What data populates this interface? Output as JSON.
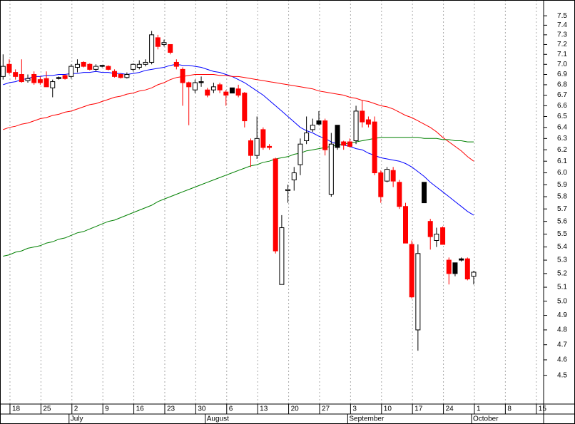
{
  "chart_data": {
    "type": "candlestick",
    "categories": [
      null,
      "18",
      null,
      null,
      null,
      null,
      "25",
      null,
      null,
      null,
      null,
      "2",
      null,
      null,
      null,
      null,
      "9",
      null,
      null,
      null,
      null,
      "16",
      null,
      null,
      null,
      null,
      "23",
      null,
      null,
      null,
      null,
      "30",
      null,
      null,
      null,
      null,
      "6",
      null,
      null,
      null,
      null,
      "13",
      null,
      null,
      null,
      null,
      "20",
      null,
      null,
      null,
      null,
      "27",
      null,
      null,
      null,
      null,
      "3",
      null,
      null,
      null,
      null,
      "10",
      null,
      null,
      null,
      null,
      "17",
      null,
      null,
      null,
      null,
      "24",
      null,
      null,
      null,
      null,
      "1",
      null,
      null,
      null,
      null,
      "8",
      null,
      null,
      null,
      null,
      "15",
      null
    ],
    "months": [
      null,
      null,
      null,
      null,
      null,
      null,
      null,
      null,
      null,
      null,
      null,
      "July",
      null,
      null,
      null,
      null,
      null,
      null,
      null,
      null,
      null,
      null,
      null,
      null,
      null,
      null,
      null,
      null,
      null,
      null,
      null,
      null,
      null,
      "August",
      null,
      null,
      null,
      null,
      null,
      null,
      null,
      null,
      null,
      null,
      null,
      null,
      null,
      null,
      null,
      null,
      null,
      null,
      null,
      null,
      null,
      null,
      "September",
      null,
      null,
      null,
      null,
      null,
      null,
      null,
      null,
      null,
      null,
      null,
      null,
      null,
      null,
      null,
      null,
      null,
      null,
      null,
      "October",
      null,
      null,
      null,
      null,
      null,
      null,
      null,
      null,
      null,
      null,
      null
    ],
    "candles": {
      "open": [
        6.88,
        7.0,
        6.92,
        6.9,
        6.84,
        6.9,
        6.85,
        6.86,
        6.77,
        6.86,
        6.89,
        6.88,
        6.97,
        7.02,
        7.0,
        6.95,
        6.98,
        6.98,
        6.93,
        6.9,
        6.87,
        6.95,
        6.97,
        7.0,
        7.02,
        7.27,
        7.2,
        7.2,
        7.02,
        6.95,
        6.82,
        6.75,
        6.82,
        6.75,
        6.75,
        6.8,
        6.73,
        6.72,
        6.76,
        6.72,
        6.28,
        6.15,
        6.38,
        6.23,
        6.12,
        5.12,
        5.85,
        5.94,
        6.07,
        6.28,
        6.38,
        6.43,
        6.46,
        5.82,
        6.22,
        6.27,
        6.27,
        6.28,
        6.55,
        6.47,
        6.45,
        6.0,
        5.93,
        6.02,
        5.92,
        5.72,
        5.42,
        4.8,
        5.75,
        5.6,
        5.45,
        5.55,
        5.3,
        5.2,
        5.3,
        5.31,
        5.18,
        null,
        null,
        null,
        null,
        null,
        null,
        null,
        null,
        null,
        null,
        null
      ],
      "high": [
        7.1,
        7.05,
        6.95,
        7.05,
        6.9,
        6.93,
        6.88,
        6.93,
        6.85,
        6.88,
        6.9,
        7.0,
        7.05,
        7.03,
        7.01,
        7.0,
        6.99,
        6.99,
        6.95,
        6.91,
        6.92,
        7.01,
        7.04,
        7.05,
        7.34,
        7.3,
        7.25,
        7.2,
        7.05,
        6.97,
        6.83,
        6.85,
        6.88,
        6.77,
        6.82,
        6.82,
        6.75,
        6.77,
        6.8,
        6.73,
        6.3,
        6.5,
        6.4,
        6.25,
        6.13,
        5.65,
        5.9,
        6.05,
        6.3,
        6.5,
        6.48,
        6.55,
        6.48,
        6.35,
        6.42,
        6.28,
        6.3,
        6.6,
        6.65,
        6.5,
        6.5,
        6.02,
        6.05,
        6.05,
        5.94,
        5.75,
        5.45,
        5.42,
        5.92,
        5.62,
        5.55,
        5.56,
        5.32,
        5.28,
        5.32,
        5.32,
        5.22,
        null,
        null,
        null,
        null,
        null,
        null,
        null,
        null,
        null,
        null,
        null
      ],
      "low": [
        6.85,
        6.9,
        6.85,
        6.82,
        6.82,
        6.8,
        6.8,
        6.78,
        6.68,
        6.85,
        6.85,
        6.86,
        6.92,
        6.97,
        6.94,
        6.93,
        6.97,
        6.94,
        6.87,
        6.86,
        6.86,
        6.93,
        6.95,
        6.98,
        7.0,
        7.15,
        7.18,
        7.1,
        6.95,
        6.6,
        6.42,
        6.72,
        6.78,
        6.68,
        6.72,
        6.72,
        6.6,
        6.72,
        6.68,
        6.4,
        6.05,
        6.12,
        6.2,
        6.2,
        5.35,
        5.12,
        5.75,
        5.85,
        5.98,
        6.25,
        6.36,
        6.42,
        6.15,
        5.8,
        6.2,
        6.2,
        6.22,
        6.25,
        6.4,
        6.4,
        5.98,
        5.75,
        5.92,
        5.88,
        5.7,
        5.43,
        5.02,
        4.66,
        5.75,
        5.38,
        5.4,
        5.42,
        5.12,
        5.18,
        5.29,
        5.15,
        5.12,
        null,
        null,
        null,
        null,
        null,
        null,
        null,
        null,
        null,
        null,
        null
      ],
      "close": [
        6.98,
        6.92,
        6.88,
        6.83,
        6.86,
        6.82,
        6.82,
        6.78,
        6.83,
        6.87,
        6.86,
        6.98,
        7.0,
        6.98,
        6.95,
        6.98,
        6.99,
        6.95,
        6.88,
        6.87,
        6.9,
        7.0,
        7.0,
        7.02,
        7.3,
        7.18,
        7.22,
        7.12,
        6.98,
        6.82,
        6.78,
        6.82,
        6.83,
        6.7,
        6.78,
        6.75,
        6.7,
        6.77,
        6.7,
        6.46,
        6.15,
        6.3,
        6.22,
        6.22,
        5.37,
        5.55,
        5.86,
        6.0,
        6.25,
        6.35,
        6.42,
        6.46,
        6.2,
        6.25,
        6.42,
        6.24,
        6.23,
        6.55,
        6.45,
        6.43,
        6.0,
        5.8,
        6.03,
        5.93,
        5.72,
        5.43,
        5.03,
        5.35,
        5.92,
        5.48,
        5.5,
        5.42,
        5.2,
        5.28,
        5.31,
        5.16,
        5.21,
        null,
        null,
        null,
        null,
        null,
        null,
        null,
        null,
        null,
        null,
        null
      ],
      "colors": [
        "#ffffff",
        "#ff0000",
        "#ff0000",
        "#ff0000",
        "#ffffff",
        "#ff0000",
        "#ff0000",
        "#ff0000",
        "#ffffff",
        "#000000",
        "#ff0000",
        "#ffffff",
        "#ffffff",
        "#ff0000",
        "#ff0000",
        "#ffffff",
        "#000000",
        "#ff0000",
        "#ff0000",
        "#ff0000",
        "#ffffff",
        "#ffffff",
        "#ffffff",
        "#ffffff",
        "#ffffff",
        "#ff0000",
        "#ffffff",
        "#ff0000",
        "#ff0000",
        "#ff0000",
        "#ff0000",
        "#ffffff",
        "#000000",
        "#ff0000",
        "#ffffff",
        "#ff0000",
        "#ff0000",
        "#000000",
        "#ff0000",
        "#ff0000",
        "#ff0000",
        "#ffffff",
        "#ff0000",
        "#ff0000",
        "#ff0000",
        "#ffffff",
        "#ffffff",
        "#ffffff",
        "#ffffff",
        "#ffffff",
        "#ffffff",
        "#000000",
        "#ff0000",
        "#ffffff",
        "#000000",
        "#ff0000",
        "#ff0000",
        "#ffffff",
        "#ff0000",
        "#ff0000",
        "#ff0000",
        "#ff0000",
        "#ffffff",
        "#ff0000",
        "#ff0000",
        "#ff0000",
        "#ff0000",
        "#ffffff",
        "#000000",
        "#ff0000",
        "#ffffff",
        "#ff0000",
        "#ff0000",
        "#000000",
        "#000000",
        "#ff0000",
        "#ffffff",
        null,
        null,
        null,
        null,
        null,
        null,
        null,
        null,
        null,
        null,
        null
      ]
    },
    "series": [
      {
        "color": "#0000ff",
        "values": [
          6.8,
          6.82,
          6.83,
          6.85,
          6.86,
          6.88,
          6.88,
          6.89,
          6.89,
          6.9,
          6.9,
          6.91,
          6.91,
          6.92,
          6.92,
          6.93,
          6.92,
          6.92,
          6.91,
          6.91,
          6.9,
          6.91,
          6.92,
          6.94,
          6.95,
          6.96,
          6.97,
          6.99,
          7.0,
          6.99,
          6.99,
          6.98,
          6.97,
          6.95,
          6.93,
          6.92,
          6.9,
          6.88,
          6.85,
          6.82,
          6.78,
          6.74,
          6.7,
          6.65,
          6.6,
          6.55,
          6.5,
          6.45,
          6.4,
          6.37,
          6.35,
          6.32,
          6.3,
          6.27,
          6.25,
          6.24,
          6.23,
          6.21,
          6.2,
          6.17,
          6.15,
          6.13,
          6.12,
          6.11,
          6.1,
          6.08,
          6.05,
          6.01,
          5.97,
          5.92,
          5.88,
          5.84,
          5.8,
          5.76,
          5.72,
          5.68,
          5.65,
          null,
          null,
          null,
          null,
          null,
          null,
          null,
          null,
          null,
          null,
          null
        ]
      },
      {
        "color": "#ff0000",
        "values": [
          6.38,
          6.4,
          6.41,
          6.43,
          6.44,
          6.46,
          6.48,
          6.49,
          6.51,
          6.52,
          6.54,
          6.55,
          6.57,
          6.59,
          6.61,
          6.62,
          6.64,
          6.66,
          6.68,
          6.69,
          6.71,
          6.72,
          6.74,
          6.75,
          6.77,
          6.8,
          6.82,
          6.85,
          6.87,
          6.88,
          6.89,
          6.9,
          6.9,
          6.9,
          6.9,
          6.89,
          6.89,
          6.88,
          6.88,
          6.87,
          6.86,
          6.85,
          6.84,
          6.83,
          6.82,
          6.81,
          6.8,
          6.79,
          6.78,
          6.77,
          6.76,
          6.74,
          6.73,
          6.72,
          6.71,
          6.7,
          6.68,
          6.67,
          6.65,
          6.64,
          6.62,
          6.6,
          6.59,
          6.57,
          6.54,
          6.51,
          6.49,
          6.46,
          6.43,
          6.4,
          6.36,
          6.31,
          6.27,
          6.23,
          6.19,
          6.14,
          6.1,
          null,
          null,
          null,
          null,
          null,
          null,
          null,
          null,
          null,
          null,
          null
        ]
      },
      {
        "color": "#008000",
        "values": [
          5.33,
          5.34,
          5.36,
          5.37,
          5.39,
          5.4,
          5.41,
          5.43,
          5.44,
          5.46,
          5.47,
          5.49,
          5.51,
          5.52,
          5.54,
          5.56,
          5.58,
          5.6,
          5.61,
          5.63,
          5.65,
          5.67,
          5.69,
          5.71,
          5.73,
          5.76,
          5.78,
          5.8,
          5.82,
          5.84,
          5.86,
          5.88,
          5.9,
          5.92,
          5.94,
          5.96,
          5.98,
          6.0,
          6.02,
          6.04,
          6.06,
          6.07,
          6.09,
          6.1,
          6.12,
          6.13,
          6.14,
          6.16,
          6.17,
          6.19,
          6.2,
          6.21,
          6.22,
          6.23,
          6.24,
          6.25,
          6.26,
          6.27,
          6.28,
          6.29,
          6.3,
          6.31,
          6.31,
          6.31,
          6.31,
          6.31,
          6.31,
          6.31,
          6.3,
          6.3,
          6.3,
          6.29,
          6.29,
          6.28,
          6.28,
          6.27,
          6.27,
          null,
          null,
          null,
          null,
          null,
          null,
          null,
          null,
          null,
          null,
          null
        ]
      }
    ],
    "ylim": [
      4.32,
      7.67
    ],
    "log_scale": true,
    "grid": true,
    "yticks": [
      4.5,
      4.6,
      4.7,
      4.8,
      4.9,
      {
        "value": 5,
        "label": "5.0"
      },
      5.1,
      5.2,
      5.3,
      5.4,
      5.5,
      5.6,
      5.7,
      5.8,
      5.9,
      {
        "value": 6,
        "label": "6.0"
      },
      6.1,
      6.2,
      6.3,
      6.4,
      6.5,
      6.6,
      6.7,
      6.8,
      6.9,
      {
        "value": 7,
        "label": "7.0"
      },
      7.1,
      7.2,
      7.3,
      7.4,
      7.5
    ]
  }
}
